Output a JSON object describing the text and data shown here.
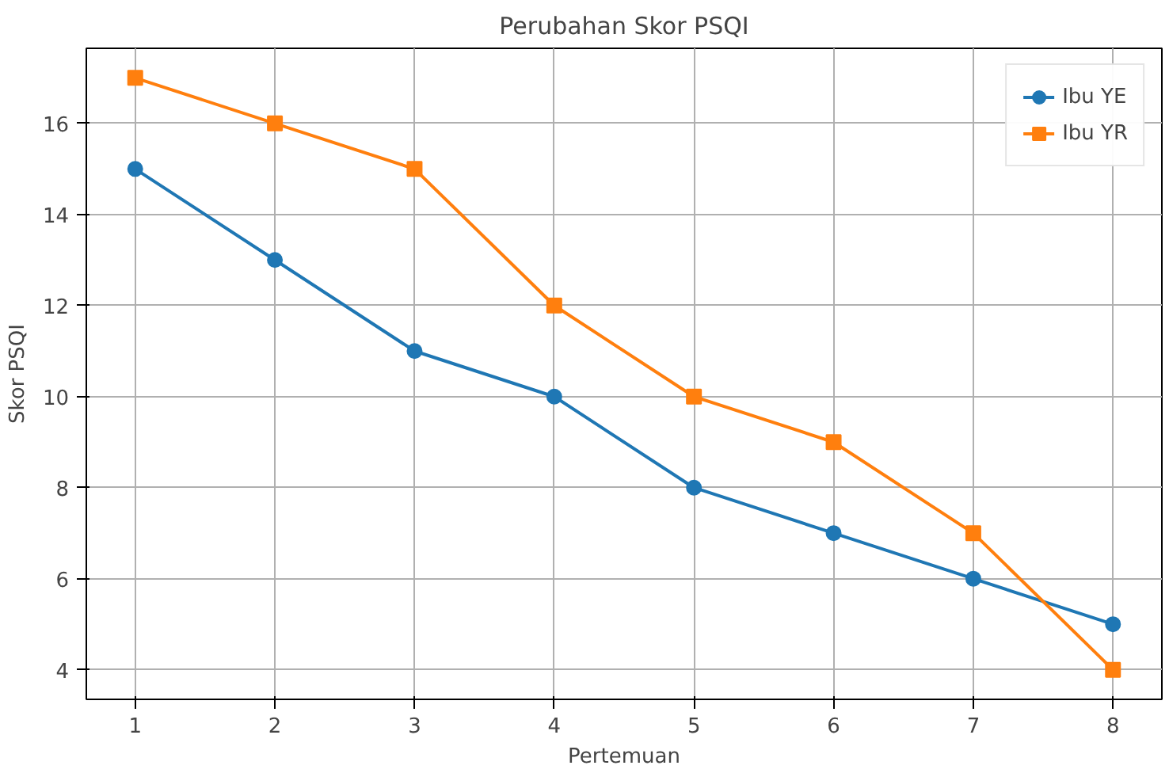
{
  "chart_data": {
    "type": "line",
    "title": "Perubahan Skor PSQI",
    "xlabel": "Pertemuan",
    "ylabel": "Skor PSQI",
    "x": [
      1,
      2,
      3,
      4,
      5,
      6,
      7,
      8
    ],
    "series": [
      {
        "name": "Ibu YE",
        "color": "#1f77b4",
        "marker": "circle",
        "values": [
          15,
          13,
          11,
          10,
          8,
          7,
          6,
          5
        ]
      },
      {
        "name": "Ibu YR",
        "color": "#ff7f0e",
        "marker": "square",
        "values": [
          17,
          16,
          15,
          12,
          10,
          9,
          7,
          4
        ]
      }
    ],
    "xlim": [
      0.65,
      8.35
    ],
    "ylim": [
      3.35,
      17.65
    ],
    "xticks": [
      1,
      2,
      3,
      4,
      5,
      6,
      7,
      8
    ],
    "yticks": [
      4,
      6,
      8,
      10,
      12,
      14,
      16
    ],
    "grid": true,
    "legend": "top right",
    "line_style": "solid"
  }
}
